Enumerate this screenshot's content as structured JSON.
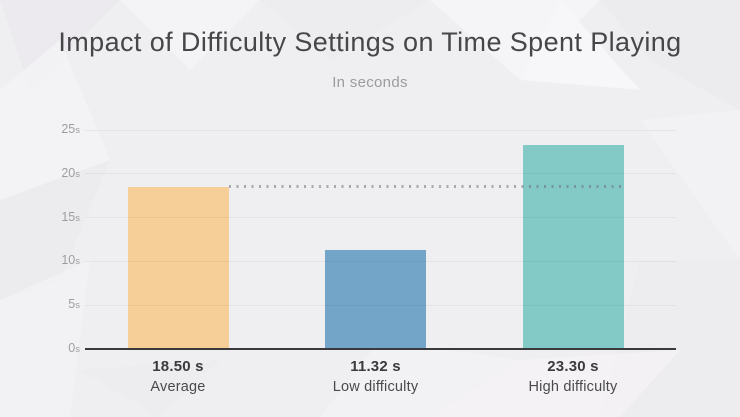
{
  "chart_data": {
    "type": "bar",
    "title": "Impact of Difficulty Settings on Time Spent Playing",
    "subtitle": "In seconds",
    "categories": [
      "Average",
      "Low difficulty",
      "High difficulty"
    ],
    "values": [
      18.5,
      11.32,
      23.3
    ],
    "value_labels": [
      "18.50 s",
      "11.32 s",
      "23.30 s"
    ],
    "bar_colors": [
      "#f6ce97",
      "#72a5c8",
      "#83cac6"
    ],
    "ylim": [
      0,
      25
    ],
    "y_ticks": [
      {
        "value": 0,
        "label": "0",
        "unit": "s"
      },
      {
        "value": 5,
        "label": "5",
        "unit": "s"
      },
      {
        "value": 10,
        "label": "10",
        "unit": "s"
      },
      {
        "value": 15,
        "label": "15",
        "unit": "s"
      },
      {
        "value": 20,
        "label": "20",
        "unit": "s"
      },
      {
        "value": 25,
        "label": "25",
        "unit": "s"
      }
    ],
    "average_line": {
      "value": 18.5,
      "style": "dotted"
    },
    "grid": true,
    "legend": false,
    "colors": {
      "background": "#efeef0",
      "axis": "#3a3a3c",
      "title_text": "#47474a",
      "subtitle_text": "#9b9ba0",
      "tick_text": "#9e9ea2",
      "value_text": "#3b3b3d",
      "category_text": "#4a4a4d"
    }
  }
}
